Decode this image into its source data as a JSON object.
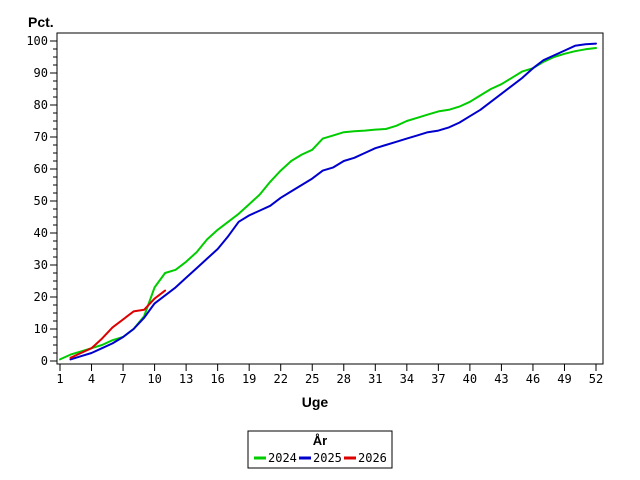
{
  "chart_data": {
    "type": "line",
    "ylabel": "Pct.",
    "xlabel": "Uge",
    "legend_title": "År",
    "legend_position": "bottom-center",
    "grid": false,
    "xlim": [
      1,
      52
    ],
    "ylim": [
      0,
      100
    ],
    "x_ticks": [
      1,
      4,
      7,
      10,
      13,
      16,
      19,
      22,
      25,
      28,
      31,
      34,
      37,
      40,
      43,
      46,
      49,
      52
    ],
    "y_ticks": [
      0,
      10,
      20,
      30,
      40,
      50,
      60,
      70,
      80,
      90,
      100
    ],
    "y_minor_tick_step": 2.5,
    "frame_color": "#000000",
    "background_color": "#ffffff",
    "series": [
      {
        "name": "2024",
        "color": "#00cc00",
        "start_week": 1,
        "values": [
          0.5,
          2,
          3,
          4,
          5,
          6.5,
          7.5,
          10,
          14,
          23,
          27.5,
          28.5,
          31,
          34,
          38,
          41,
          43.5,
          46,
          49,
          52,
          56,
          59.5,
          62.5,
          64.5,
          66,
          69.5,
          70.5,
          71.5,
          71.8,
          72,
          72.3,
          72.5,
          73.5,
          75,
          76,
          77,
          78,
          78.5,
          79.5,
          81,
          83,
          85,
          86.5,
          88.5,
          90.5,
          91.5,
          93.5,
          95,
          96,
          96.8,
          97.4,
          97.8
        ]
      },
      {
        "name": "2025",
        "color": "#0000cc",
        "start_week": 2,
        "values": [
          0.5,
          1.5,
          2.5,
          4,
          5.5,
          7.5,
          10,
          13.5,
          18,
          20.5,
          23,
          26,
          29,
          32,
          35,
          39,
          43.5,
          45.5,
          47,
          48.5,
          51,
          53,
          55,
          57,
          59.5,
          60.5,
          62.5,
          63.5,
          65,
          66.5,
          67.5,
          68.5,
          69.5,
          70.5,
          71.5,
          72,
          73,
          74.5,
          76.5,
          78.5,
          81,
          83.5,
          86,
          88.5,
          91.5,
          94,
          95.5,
          97,
          98.5,
          99,
          99.2
        ]
      },
      {
        "name": "2026",
        "color": "#dd0000",
        "start_week": 2,
        "values": [
          1,
          2.5,
          4,
          7,
          10.5,
          13,
          15.5,
          16,
          19.5,
          22
        ]
      }
    ]
  }
}
